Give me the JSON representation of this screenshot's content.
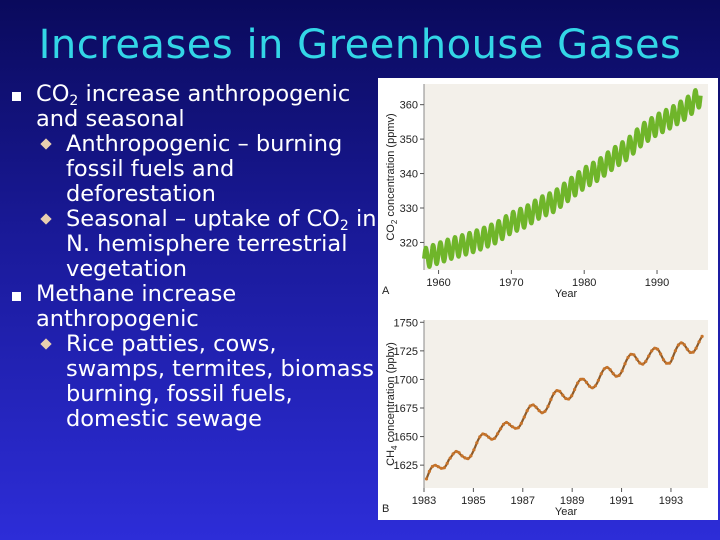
{
  "slide": {
    "title": "Increases in Greenhouse Gases",
    "bullets": [
      {
        "text": "CO",
        "sub": "2",
        "text_after": " increase anthropogenic and seasonal",
        "subs": [
          {
            "text": "Anthropogenic – burning fossil fuels and deforestation"
          },
          {
            "text": "Seasonal – uptake of CO",
            "sub": "2",
            "text_after": " in N. hemisphere terrestrial vegetation"
          }
        ]
      },
      {
        "text": "Methane increase anthropogenic",
        "subs": [
          {
            "text": "Rice patties, cows, swamps, termites, biomass burning, fossil fuels, domestic sewage"
          }
        ]
      }
    ]
  },
  "colors": {
    "title": "#33d6e6",
    "co2_line": "#6fb52a",
    "ch4_line": "#8b5a2b",
    "ch4_marker": "#c8742a"
  },
  "chart_data": [
    {
      "type": "line",
      "panel_label": "A",
      "xlabel": "Year",
      "ylabel": "CO2 concentration (ppmv)",
      "ylabel_parts": [
        "CO",
        "2",
        " concentration (ppmv)"
      ],
      "xticks": [
        "1960",
        "1970",
        "1980",
        "1990"
      ],
      "yticks": [
        320,
        330,
        340,
        350,
        360
      ],
      "xlim": [
        1958,
        1997
      ],
      "ylim": [
        312,
        366
      ],
      "series": [
        {
          "x": [
            1958,
            1960,
            1962,
            1964,
            1966,
            1968,
            1970,
            1972,
            1974,
            1976,
            1978,
            1980,
            1982,
            1984,
            1986,
            1988,
            1990,
            1992,
            1994,
            1996
          ],
          "values": [
            315.3,
            316.9,
            318.4,
            319.6,
            321.1,
            322.9,
            325.7,
            327.5,
            330.2,
            332.0,
            335.4,
            338.7,
            341.1,
            344.4,
            347.2,
            351.4,
            354.2,
            356.3,
            358.9,
            362.6
          ],
          "seasonal_amplitude": 3
        }
      ]
    },
    {
      "type": "line",
      "panel_label": "B",
      "xlabel": "Year",
      "ylabel": "CH4 concentration (ppbv)",
      "ylabel_parts": [
        "CH",
        "4",
        " concentration (ppbv)"
      ],
      "xticks": [
        "1983",
        "1985",
        "1987",
        "1989",
        "1991",
        "1993"
      ],
      "yticks": [
        1625,
        1650,
        1675,
        1700,
        1725,
        1750
      ],
      "xlim": [
        1983,
        1994.5
      ],
      "ylim": [
        1605,
        1752
      ],
      "series": [
        {
          "x": [
            1983.1,
            1983.5,
            1984.0,
            1984.5,
            1985.0,
            1985.5,
            1986.0,
            1986.5,
            1987.0,
            1987.5,
            1988.0,
            1988.5,
            1989.0,
            1989.5,
            1990.0,
            1990.5,
            1991.0,
            1991.5,
            1992.0,
            1992.5,
            1993.0,
            1993.5,
            1994.0,
            1994.3
          ],
          "values": [
            1613,
            1621,
            1633,
            1630,
            1641,
            1648,
            1657,
            1656,
            1668,
            1673,
            1679,
            1686,
            1690,
            1696,
            1700,
            1706,
            1710,
            1718,
            1720,
            1722,
            1719,
            1728,
            1730,
            1733
          ],
          "seasonal_amplitude": 6
        }
      ]
    }
  ]
}
